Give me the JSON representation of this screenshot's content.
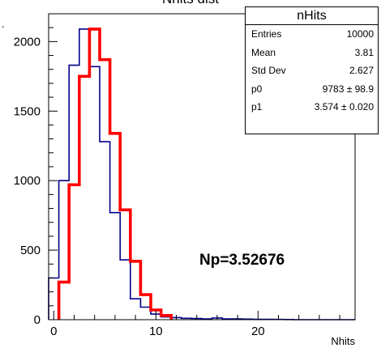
{
  "chart_data": {
    "type": "histogram",
    "title": "Nhits dist",
    "xlabel": "Nhits",
    "ylabel": "",
    "xlim": [
      -0.5,
      29.5
    ],
    "ylim": [
      0,
      2200
    ],
    "x_ticks": [
      0,
      10,
      20
    ],
    "y_ticks": [
      0,
      500,
      1000,
      1500,
      2000
    ],
    "grid": false,
    "series": [
      {
        "color": "#00008b",
        "style": "step",
        "bin_edges": [
          -0.5,
          0.5,
          1.5,
          2.5,
          3.5,
          4.5,
          5.5,
          6.5,
          7.5,
          8.5,
          9.5,
          10.5,
          11.5,
          12.5,
          13.5,
          14.5,
          15.5,
          16.5,
          17.5,
          18.5,
          19.5,
          20.5,
          21.5,
          22.5,
          23.5,
          24.5,
          25.5,
          26.5,
          27.5,
          28.5,
          29.5
        ],
        "values": [
          300,
          1000,
          1830,
          2090,
          1820,
          1280,
          770,
          430,
          150,
          90,
          40,
          20,
          15,
          10,
          8,
          5,
          12,
          6,
          5,
          4,
          3,
          3,
          2,
          1,
          0,
          0,
          0,
          0,
          0,
          0
        ]
      },
      {
        "color": "#ff0000",
        "style": "step",
        "bin_edges": [
          0.5,
          1.5,
          2.5,
          3.5,
          4.5,
          5.5,
          6.5,
          7.5,
          8.5,
          9.5,
          10.5,
          11.5
        ],
        "values": [
          270,
          970,
          1750,
          2090,
          1870,
          1340,
          790,
          420,
          180,
          70,
          30
        ]
      }
    ],
    "stats_box": {
      "title": "nHits",
      "rows": [
        {
          "label": "Entries",
          "value": "10000"
        },
        {
          "label": "Mean",
          "value": "3.81"
        },
        {
          "label": "Std Dev",
          "value": "2.627"
        },
        {
          "label": "p0",
          "value": "9783 ± 98.9"
        },
        {
          "label": "p1",
          "value": "3.574 ± 0.020"
        }
      ]
    },
    "annotation": "Np=3.52676"
  }
}
